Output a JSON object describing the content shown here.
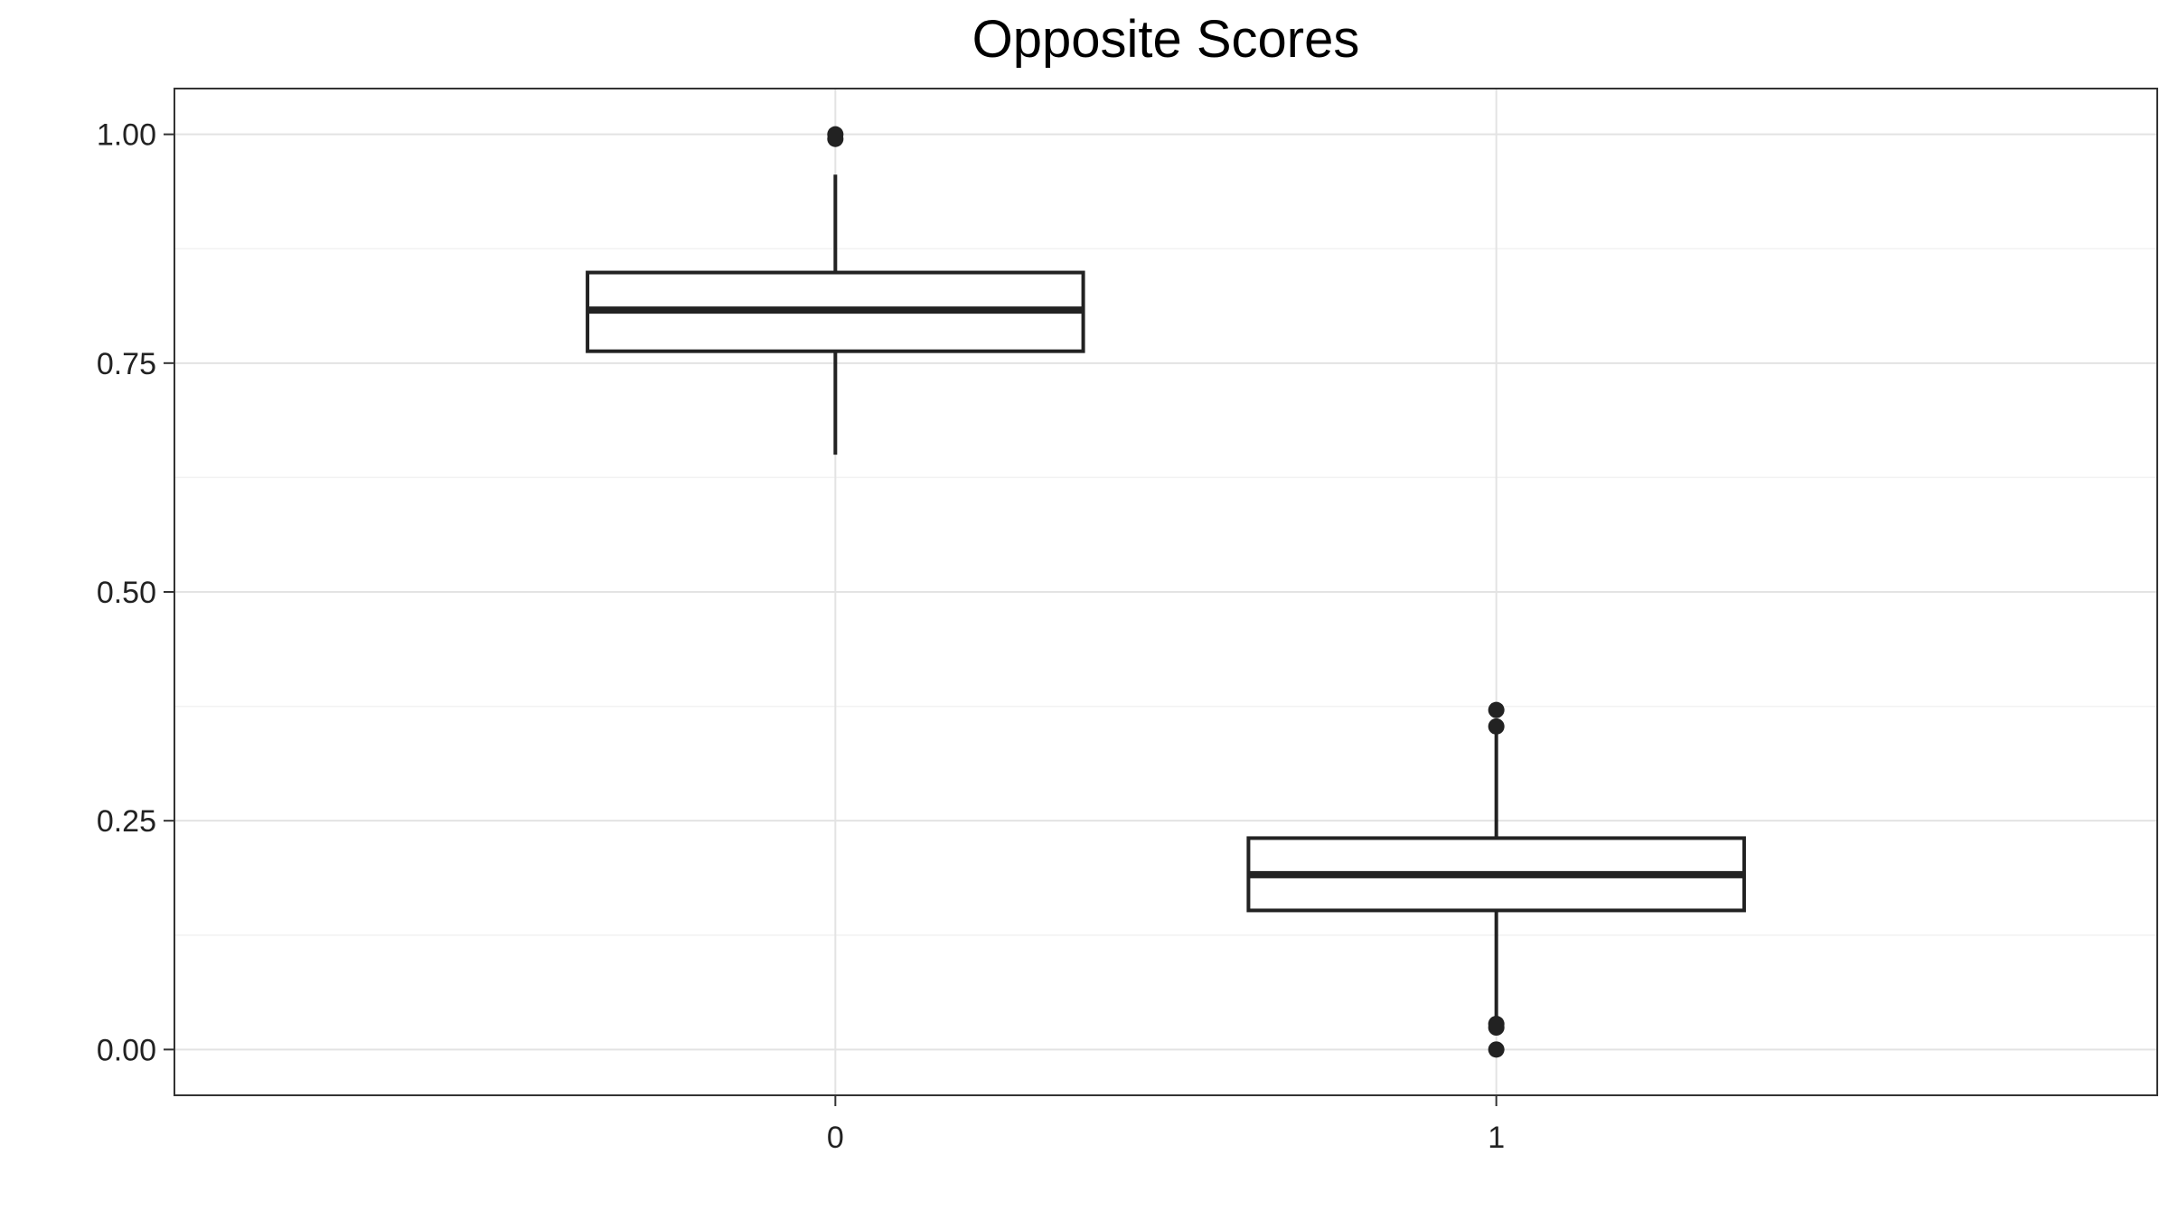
{
  "chart_data": {
    "type": "boxplot",
    "title": "Opposite Scores",
    "xlabel": "",
    "ylabel": "",
    "categories": [
      "0",
      "1"
    ],
    "ylim": [
      -0.05,
      1.05
    ],
    "y_ticks": [
      0.0,
      0.25,
      0.5,
      0.75,
      1.0
    ],
    "y_tick_labels": [
      "0.00",
      "0.25",
      "0.50",
      "0.75",
      "1.00"
    ],
    "grid": true,
    "boxes": [
      {
        "category": "0",
        "lower_whisker": 0.65,
        "q1": 0.763,
        "median": 0.808,
        "q3": 0.849,
        "upper_whisker": 0.956,
        "outliers": [
          0.995,
          1.0
        ]
      },
      {
        "category": "1",
        "lower_whisker": 0.03,
        "q1": 0.152,
        "median": 0.191,
        "q3": 0.231,
        "upper_whisker": 0.353,
        "outliers": [
          0.0,
          0.024,
          0.028,
          0.353,
          0.371
        ]
      }
    ]
  }
}
